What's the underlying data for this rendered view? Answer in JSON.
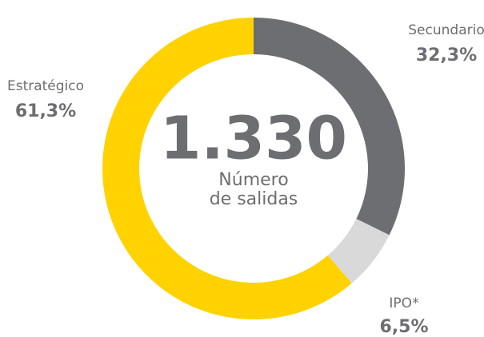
{
  "chart_data": {
    "type": "donut",
    "categories": [
      "Secundario",
      "IPO*",
      "Estratégico"
    ],
    "values": [
      32.3,
      6.5,
      61.3
    ],
    "value_labels": [
      "32,3%",
      "6,5%",
      "61,3%"
    ],
    "colors": [
      "#6d6e71",
      "#d9d9d9",
      "#ffd200"
    ],
    "center_label": "1.330",
    "center_caption": [
      "Número",
      "de salidas"
    ]
  }
}
